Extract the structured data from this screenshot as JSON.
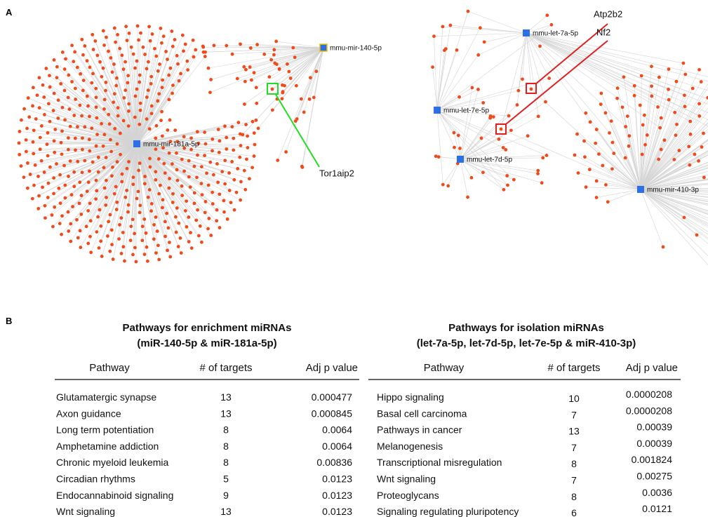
{
  "panels": {
    "a": "A",
    "b": "B"
  },
  "network": {
    "left_hubs": [
      "mmu-mir-181a-5p",
      "mmu-mir-140-5p"
    ],
    "left_callout": "Tor1aip2",
    "right_hubs": [
      "mmu-let-7a-5p",
      "mmu-let-7e-5p",
      "mmu-let-7d-5p",
      "mmu-mir-410-3p"
    ],
    "right_callouts": [
      "Atp2b2",
      "Nf2"
    ]
  },
  "tables": [
    {
      "title": [
        "Pathways for enrichment miRNAs",
        "(miR-140-5p & miR-181a-5p)"
      ],
      "header": [
        "Pathway",
        "# of targets",
        "Adj p value"
      ],
      "rows": [
        [
          "Glutamatergic synapse",
          "13",
          "0.000477"
        ],
        [
          "Axon guidance",
          "13",
          "0.000845"
        ],
        [
          "Long term potentiation",
          "8",
          "0.0064"
        ],
        [
          "Amphetamine addiction",
          "8",
          "0.0064"
        ],
        [
          "Chronic myeloid leukemia",
          "8",
          "0.00836"
        ],
        [
          "Circadian rhythms",
          "5",
          "0.0123"
        ],
        [
          "Endocannabinoid signaling",
          "9",
          "0.0123"
        ],
        [
          "Wnt signaling",
          "13",
          "0.0123"
        ]
      ]
    },
    {
      "title": [
        "Pathways for isolation miRNAs",
        "(let-7a-5p, let-7d-5p, let-7e-5p & miR-410-3p)"
      ],
      "header": [
        "Pathway",
        "# of targets",
        "Adj p value"
      ],
      "rows": [
        [
          "Hippo signaling",
          "10",
          "0.0000208"
        ],
        [
          "Basal cell carcinoma",
          "7",
          "0.0000208"
        ],
        [
          "Pathways in cancer",
          "13",
          "0.00039"
        ],
        [
          "Melanogenesis",
          "7",
          "0.00039"
        ],
        [
          "Transcriptional misregulation",
          "8",
          "0.001824"
        ],
        [
          "Wnt signaling",
          "7",
          "0.00275"
        ],
        [
          "Proteoglycans",
          "8",
          "0.0036"
        ],
        [
          "Signaling regulating pluripotency",
          "6",
          "0.0121"
        ]
      ]
    }
  ]
}
